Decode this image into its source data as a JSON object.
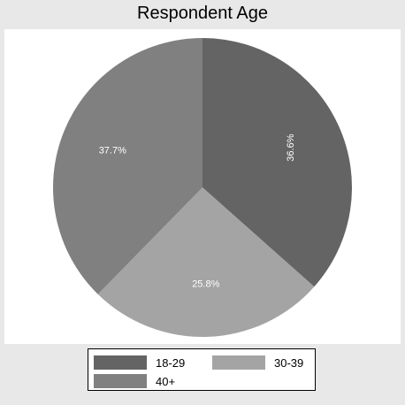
{
  "chart_data": {
    "type": "pie",
    "title": "Respondent Age",
    "slices": [
      {
        "label": "18-29",
        "value": 36.6,
        "display": "36.6%",
        "color": "#646464",
        "label_rotated": true
      },
      {
        "label": "30-39",
        "value": 25.8,
        "display": "25.8%",
        "color": "#a4a4a4",
        "label_rotated": false
      },
      {
        "label": "40+",
        "value": 37.7,
        "display": "37.7%",
        "color": "#808080",
        "label_rotated": false
      }
    ],
    "legend": {
      "placement": "bottom",
      "columns": 2
    }
  }
}
